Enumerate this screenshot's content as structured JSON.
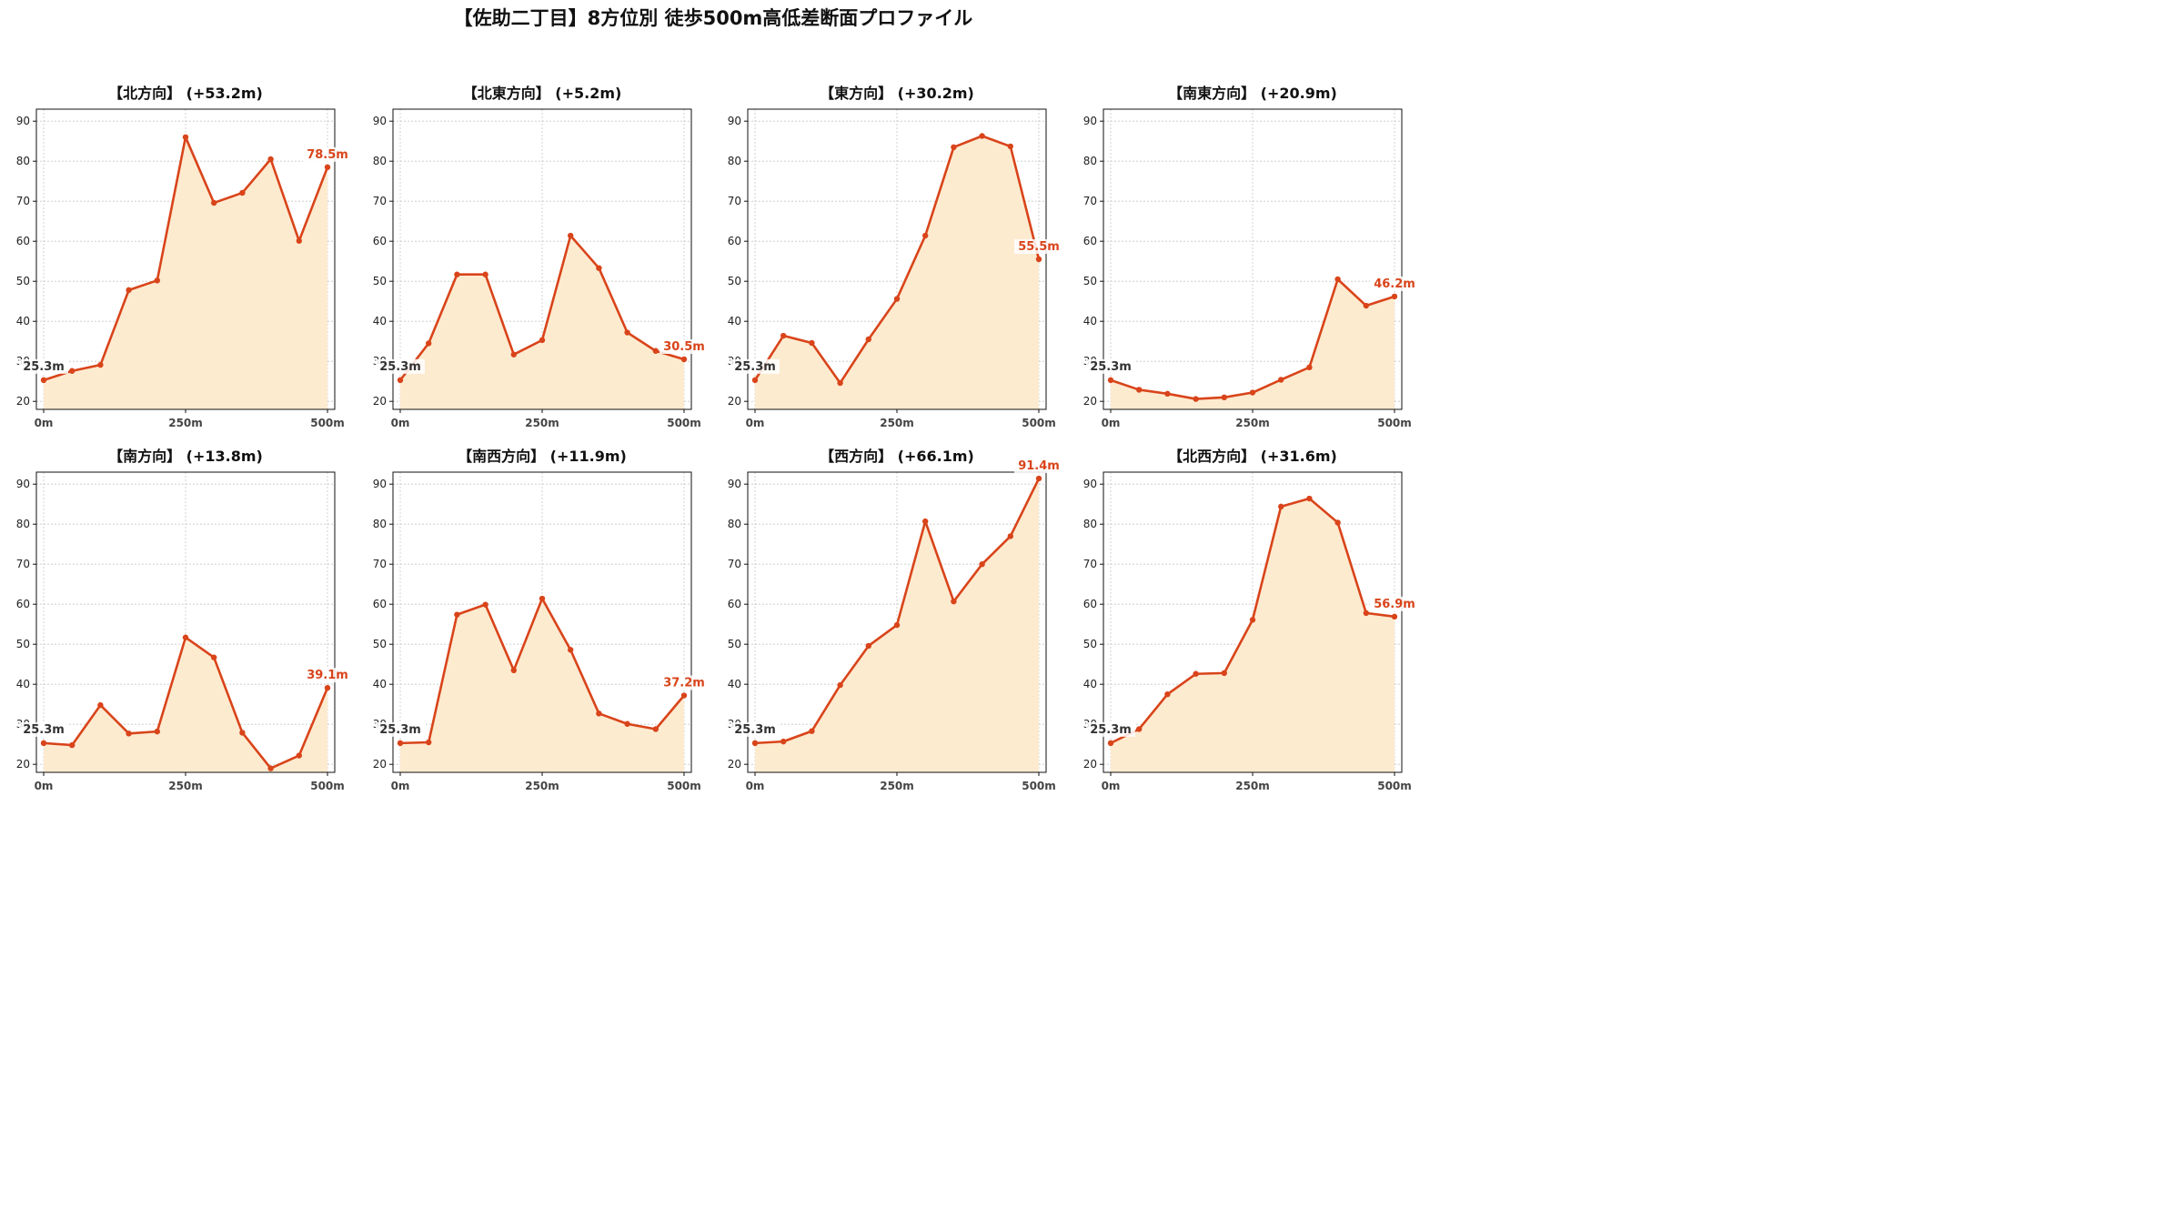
{
  "title": "【佐助二丁目】8方位別 徒歩500m高低差断面プロファイル",
  "colors": {
    "line": "#d9441a",
    "fill": "#fdebd0",
    "grid": "#c8c8c8",
    "axis": "#111111"
  },
  "chart_data": [
    {
      "type": "area",
      "title": "【北方向】 (+53.2m)",
      "x": [
        0,
        50,
        100,
        150,
        200,
        250,
        300,
        350,
        400,
        450,
        500
      ],
      "y": [
        25.3,
        27.6,
        29.1,
        47.8,
        50.2,
        86.0,
        69.6,
        72.1,
        80.5,
        60.1,
        78.5
      ],
      "xticks": [
        "0m",
        "250m",
        "500m"
      ],
      "yticks": [
        20,
        30,
        40,
        50,
        60,
        70,
        80,
        90
      ],
      "ylim": [
        18,
        93
      ],
      "start_label": "25.3m",
      "end_label": "78.5m",
      "grid": true
    },
    {
      "type": "area",
      "title": "【北東方向】 (+5.2m)",
      "x": [
        0,
        50,
        100,
        150,
        200,
        250,
        300,
        350,
        400,
        450,
        500
      ],
      "y": [
        25.3,
        34.5,
        51.7,
        51.7,
        31.7,
        35.3,
        61.4,
        53.3,
        37.2,
        32.6,
        30.5
      ],
      "xticks": [
        "0m",
        "250m",
        "500m"
      ],
      "yticks": [
        20,
        30,
        40,
        50,
        60,
        70,
        80,
        90
      ],
      "ylim": [
        18,
        93
      ],
      "start_label": "25.3m",
      "end_label": "30.5m",
      "grid": true
    },
    {
      "type": "area",
      "title": "【東方向】 (+30.2m)",
      "x": [
        0,
        50,
        100,
        150,
        200,
        250,
        300,
        350,
        400,
        450,
        500
      ],
      "y": [
        25.3,
        36.4,
        34.6,
        24.6,
        35.5,
        45.6,
        61.4,
        83.5,
        86.3,
        83.7,
        55.5
      ],
      "xticks": [
        "0m",
        "250m",
        "500m"
      ],
      "yticks": [
        20,
        30,
        40,
        50,
        60,
        70,
        80,
        90
      ],
      "ylim": [
        18,
        93
      ],
      "start_label": "25.3m",
      "end_label": "55.5m",
      "grid": true
    },
    {
      "type": "area",
      "title": "【南東方向】 (+20.9m)",
      "x": [
        0,
        50,
        100,
        150,
        200,
        250,
        300,
        350,
        400,
        450,
        500
      ],
      "y": [
        25.3,
        22.9,
        21.9,
        20.6,
        21.0,
        22.2,
        25.4,
        28.5,
        50.5,
        43.9,
        46.2
      ],
      "xticks": [
        "0m",
        "250m",
        "500m"
      ],
      "yticks": [
        20,
        30,
        40,
        50,
        60,
        70,
        80,
        90
      ],
      "ylim": [
        18,
        93
      ],
      "start_label": "25.3m",
      "end_label": "46.2m",
      "grid": true
    },
    {
      "type": "area",
      "title": "【南方向】 (+13.8m)",
      "x": [
        0,
        50,
        100,
        150,
        200,
        250,
        300,
        350,
        400,
        450,
        500
      ],
      "y": [
        25.3,
        24.8,
        34.8,
        27.7,
        28.2,
        51.7,
        46.7,
        27.9,
        19.0,
        22.2,
        39.1
      ],
      "xticks": [
        "0m",
        "250m",
        "500m"
      ],
      "yticks": [
        20,
        30,
        40,
        50,
        60,
        70,
        80,
        90
      ],
      "ylim": [
        18,
        93
      ],
      "start_label": "25.3m",
      "end_label": "39.1m",
      "grid": true
    },
    {
      "type": "area",
      "title": "【南西方向】 (+11.9m)",
      "x": [
        0,
        50,
        100,
        150,
        200,
        250,
        300,
        350,
        400,
        450,
        500
      ],
      "y": [
        25.3,
        25.5,
        57.4,
        59.9,
        43.5,
        61.4,
        48.6,
        32.7,
        30.1,
        28.8,
        37.2
      ],
      "xticks": [
        "0m",
        "250m",
        "500m"
      ],
      "yticks": [
        20,
        30,
        40,
        50,
        60,
        70,
        80,
        90
      ],
      "ylim": [
        18,
        93
      ],
      "start_label": "25.3m",
      "end_label": "37.2m",
      "grid": true
    },
    {
      "type": "area",
      "title": "【西方向】 (+66.1m)",
      "x": [
        0,
        50,
        100,
        150,
        200,
        250,
        300,
        350,
        400,
        450,
        500
      ],
      "y": [
        25.3,
        25.7,
        28.3,
        39.8,
        49.6,
        54.8,
        80.7,
        60.7,
        70.0,
        77.0,
        91.4
      ],
      "xticks": [
        "0m",
        "250m",
        "500m"
      ],
      "yticks": [
        20,
        30,
        40,
        50,
        60,
        70,
        80,
        90
      ],
      "ylim": [
        18,
        93
      ],
      "start_label": "25.3m",
      "end_label": "91.4m",
      "grid": true
    },
    {
      "type": "area",
      "title": "【北西方向】 (+31.6m)",
      "x": [
        0,
        50,
        100,
        150,
        200,
        250,
        300,
        350,
        400,
        450,
        500
      ],
      "y": [
        25.3,
        28.8,
        37.5,
        42.6,
        42.8,
        56.1,
        84.4,
        86.4,
        80.4,
        57.8,
        56.9
      ],
      "xticks": [
        "0m",
        "250m",
        "500m"
      ],
      "yticks": [
        20,
        30,
        40,
        50,
        60,
        70,
        80,
        90
      ],
      "ylim": [
        18,
        93
      ],
      "start_label": "25.3m",
      "end_label": "56.9m",
      "grid": true
    }
  ]
}
